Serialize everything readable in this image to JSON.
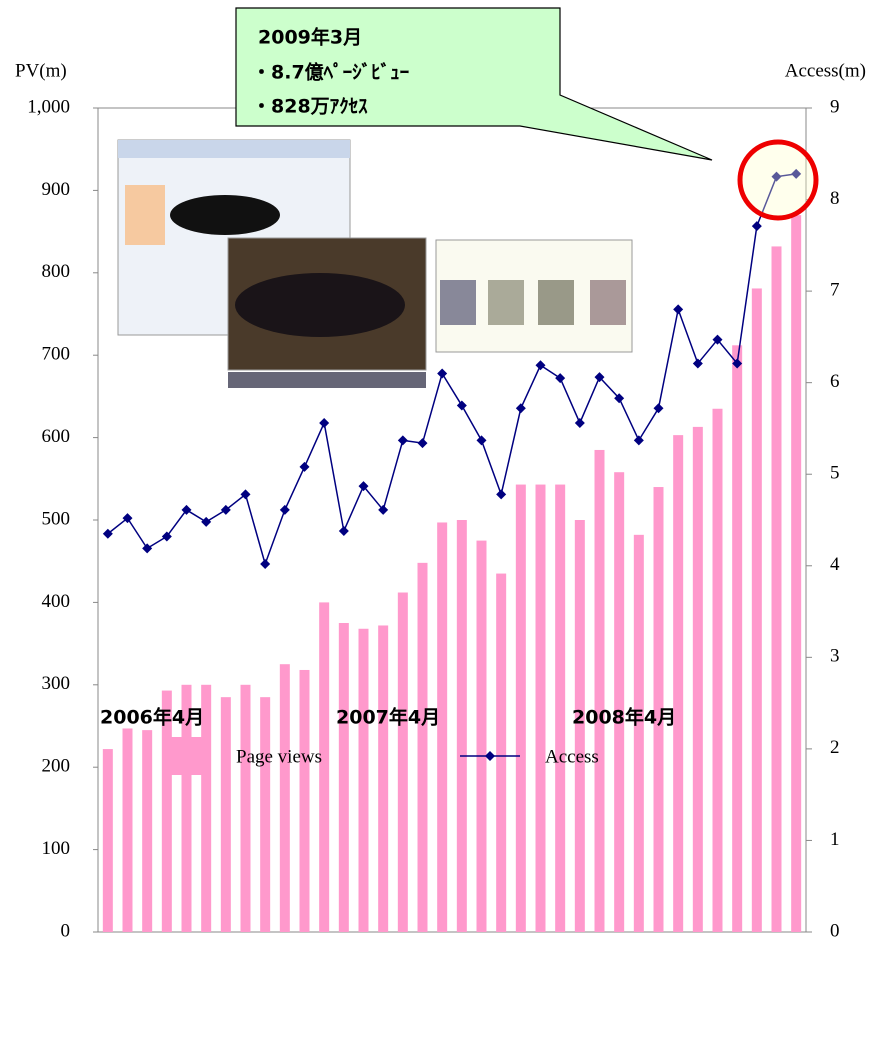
{
  "chart_data": {
    "type": "bar",
    "y_axis_label": "PV(m)",
    "y2_axis_label": "Access(m)",
    "annotation": [
      "2009年3月",
      "・8.7億ﾍﾟｰｼﾞﾋﾞｭｰ",
      "・828万ｱｸｾｽ"
    ],
    "categories": [
      "2006年4月",
      null,
      null,
      null,
      null,
      null,
      null,
      null,
      null,
      null,
      null,
      null,
      "2007年4月",
      null,
      null,
      null,
      null,
      null,
      null,
      null,
      null,
      null,
      null,
      null,
      "2008年4月",
      null,
      null,
      null,
      null,
      null,
      null,
      null,
      null,
      null,
      null,
      null
    ],
    "series": [
      {
        "name": "Page views",
        "color": "#ff99cc",
        "type": "bar",
        "values": [
          222,
          247,
          245,
          293,
          300,
          300,
          285,
          300,
          285,
          325,
          318,
          400,
          375,
          368,
          372,
          412,
          448,
          497,
          500,
          475,
          435,
          543,
          543,
          543,
          500,
          585,
          558,
          482,
          540,
          603,
          613,
          635,
          712,
          781,
          832,
          870
        ]
      },
      {
        "name": "Access",
        "color": "#000080",
        "type": "line",
        "axis": "y2",
        "values": [
          4.35,
          4.52,
          4.19,
          4.32,
          4.61,
          4.48,
          4.61,
          4.78,
          4.02,
          4.61,
          5.08,
          5.56,
          4.38,
          4.87,
          4.61,
          5.37,
          5.34,
          6.1,
          5.75,
          5.37,
          4.78,
          5.72,
          6.19,
          6.05,
          5.56,
          6.06,
          5.83,
          5.37,
          5.72,
          6.8,
          6.21,
          6.47,
          6.21,
          7.71,
          8.25,
          8.28
        ]
      }
    ],
    "ylim": [
      0,
      1000
    ],
    "yticks": [
      0,
      100,
      200,
      300,
      400,
      500,
      600,
      700,
      800,
      900,
      {
        "value": 1000,
        "label": "1,000"
      }
    ],
    "y2lim": [
      0,
      9
    ],
    "y2ticks": [
      0,
      1,
      2,
      3,
      4,
      5,
      6,
      7,
      8,
      9
    ],
    "legend": "bottom"
  }
}
